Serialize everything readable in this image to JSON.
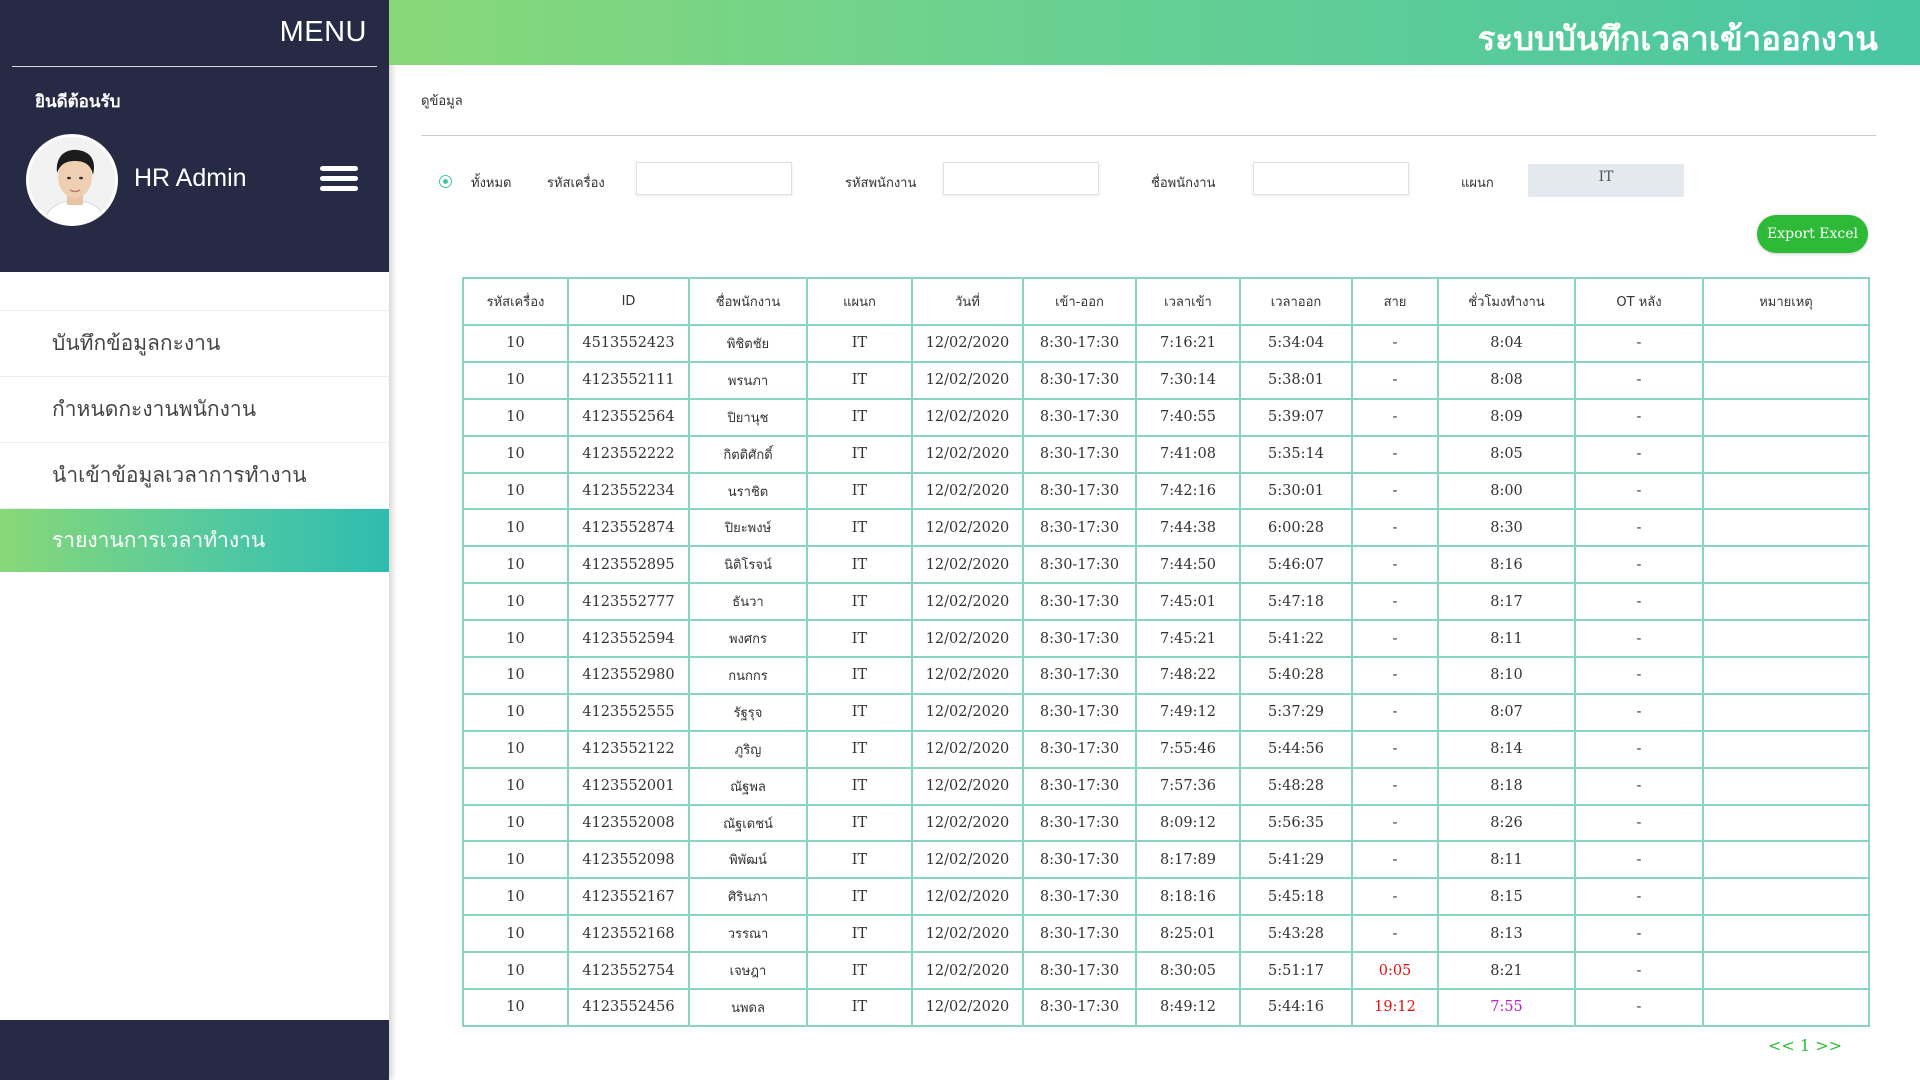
{
  "sidebar": {
    "menu_label": "MENU",
    "welcome": "ยินดีต้อนรับ",
    "user_name": "HR Admin",
    "items": [
      {
        "label": "บันทึกข้อมูลกะงาน"
      },
      {
        "label": "กำหนดกะงานพนักงาน"
      },
      {
        "label": "นำเข้าข้อมูลเวลาการทำงาน"
      },
      {
        "label": "รายงานการเวลาทำงาน"
      }
    ]
  },
  "header": {
    "title": "ระบบบันทึกเวลาเข้าออกงาน"
  },
  "breadcrumb": "ดูข้อมูล",
  "filters": {
    "all_label": "ทั้งหมด",
    "machine_label": "รหัสเครื่อง",
    "employee_id_label": "รหัสพนักงาน",
    "employee_name_label": "ชื่อพนักงาน",
    "dept_label": "แผนก",
    "dept_value": "IT",
    "machine_value": "",
    "employee_id_value": "",
    "employee_name_value": ""
  },
  "export_label": "Export Excel",
  "table": {
    "headers": [
      "รหัสเครื่อง",
      "ID",
      "ชื่อพนักงาน",
      "แผนก",
      "วันที่",
      "เข้า-ออก",
      "เวลาเข้า",
      "เวลาออก",
      "สาย",
      "ชั่วโมงทำงาน",
      "OT หลัง",
      "หมายเหตุ"
    ],
    "rows": [
      [
        "10",
        "4513552423",
        "พิชิตชัย",
        "IT",
        "12/02/2020",
        "8:30-17:30",
        "7:16:21",
        "5:34:04",
        "-",
        "8:04",
        "-",
        ""
      ],
      [
        "10",
        "4123552111",
        "พรนภา",
        "IT",
        "12/02/2020",
        "8:30-17:30",
        "7:30:14",
        "5:38:01",
        "-",
        "8:08",
        "-",
        ""
      ],
      [
        "10",
        "4123552564",
        "ปิยานุช",
        "IT",
        "12/02/2020",
        "8:30-17:30",
        "7:40:55",
        "5:39:07",
        "-",
        "8:09",
        "-",
        ""
      ],
      [
        "10",
        "4123552222",
        "กิตติศักดิ์",
        "IT",
        "12/02/2020",
        "8:30-17:30",
        "7:41:08",
        "5:35:14",
        "-",
        "8:05",
        "-",
        ""
      ],
      [
        "10",
        "4123552234",
        "นราชิต",
        "IT",
        "12/02/2020",
        "8:30-17:30",
        "7:42:16",
        "5:30:01",
        "-",
        "8:00",
        "-",
        ""
      ],
      [
        "10",
        "4123552874",
        "ปิยะพงษ์",
        "IT",
        "12/02/2020",
        "8:30-17:30",
        "7:44:38",
        "6:00:28",
        "-",
        "8:30",
        "-",
        ""
      ],
      [
        "10",
        "4123552895",
        "นิติโรจน์",
        "IT",
        "12/02/2020",
        "8:30-17:30",
        "7:44:50",
        "5:46:07",
        "-",
        "8:16",
        "-",
        ""
      ],
      [
        "10",
        "4123552777",
        "ธันวา",
        "IT",
        "12/02/2020",
        "8:30-17:30",
        "7:45:01",
        "5:47:18",
        "-",
        "8:17",
        "-",
        ""
      ],
      [
        "10",
        "4123552594",
        "พงศกร",
        "IT",
        "12/02/2020",
        "8:30-17:30",
        "7:45:21",
        "5:41:22",
        "-",
        "8:11",
        "-",
        ""
      ],
      [
        "10",
        "4123552980",
        "กนกกร",
        "IT",
        "12/02/2020",
        "8:30-17:30",
        "7:48:22",
        "5:40:28",
        "-",
        "8:10",
        "-",
        ""
      ],
      [
        "10",
        "4123552555",
        "รัฐรุจ",
        "IT",
        "12/02/2020",
        "8:30-17:30",
        "7:49:12",
        "5:37:29",
        "-",
        "8:07",
        "-",
        ""
      ],
      [
        "10",
        "4123552122",
        "ภูริญ",
        "IT",
        "12/02/2020",
        "8:30-17:30",
        "7:55:46",
        "5:44:56",
        "-",
        "8:14",
        "-",
        ""
      ],
      [
        "10",
        "4123552001",
        "ณัฐพล",
        "IT",
        "12/02/2020",
        "8:30-17:30",
        "7:57:36",
        "5:48:28",
        "-",
        "8:18",
        "-",
        ""
      ],
      [
        "10",
        "4123552008",
        "ณัฐเดชน์",
        "IT",
        "12/02/2020",
        "8:30-17:30",
        "8:09:12",
        "5:56:35",
        "-",
        "8:26",
        "-",
        ""
      ],
      [
        "10",
        "4123552098",
        "พิพัฒน์",
        "IT",
        "12/02/2020",
        "8:30-17:30",
        "8:17:89",
        "5:41:29",
        "-",
        "8:11",
        "-",
        ""
      ],
      [
        "10",
        "4123552167",
        "ศิรินภา",
        "IT",
        "12/02/2020",
        "8:30-17:30",
        "8:18:16",
        "5:45:18",
        "-",
        "8:15",
        "-",
        ""
      ],
      [
        "10",
        "4123552168",
        "วรรณา",
        "IT",
        "12/02/2020",
        "8:30-17:30",
        "8:25:01",
        "5:43:28",
        "-",
        "8:13",
        "-",
        ""
      ],
      [
        "10",
        "4123552754",
        "เจษฎา",
        "IT",
        "12/02/2020",
        "8:30-17:30",
        "8:30:05",
        "5:51:17",
        "0:05",
        "8:21",
        "-",
        ""
      ],
      [
        "10",
        "4123552456",
        "นพดล",
        "IT",
        "12/02/2020",
        "8:30-17:30",
        "8:49:12",
        "5:44:16",
        "19:12",
        "7:55",
        "-",
        ""
      ]
    ],
    "late_color": "#e11111",
    "low_hours_color": "#c020c8"
  },
  "pager": {
    "prev": "<<",
    "page": "1",
    "next": ">>"
  }
}
